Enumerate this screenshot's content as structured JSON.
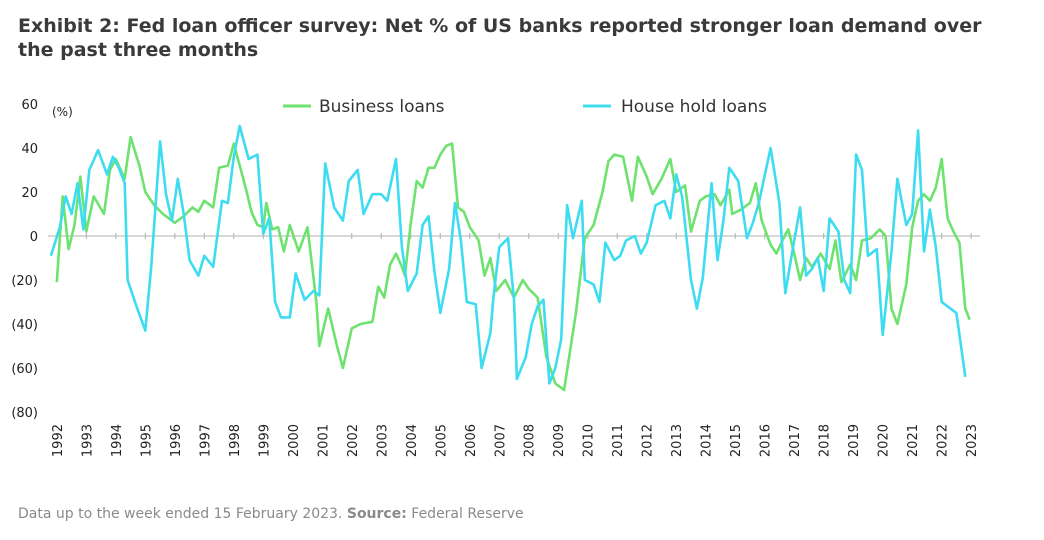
{
  "title": "Exhibit 2: Fed loan officer survey: Net % of US banks reported stronger loan demand over the past three months",
  "footer": {
    "text": "Data up to the week ended 15 February 2023. ",
    "source_label": "Source:",
    "source": " Federal Reserve"
  },
  "chart_data": {
    "type": "line",
    "unit_label": "(%)",
    "xlim": [
      1991.7,
      2023.3
    ],
    "ylim": [
      -80,
      60
    ],
    "y_ticks": [
      60,
      40,
      20,
      0,
      -20,
      -40,
      -60,
      -80
    ],
    "y_tick_labels": [
      "60",
      "40",
      "20",
      "0",
      "(20)",
      "(40)",
      "(60)",
      "(80)"
    ],
    "x_ticks": [
      "1992",
      "1993",
      "1994",
      "1995",
      "1996",
      "1997",
      "1998",
      "1999",
      "2000",
      "2001",
      "2002",
      "2003",
      "2004",
      "2005",
      "2006",
      "2007",
      "2008",
      "2009",
      "2010",
      "2011",
      "2012",
      "2013",
      "2014",
      "2015",
      "2016",
      "2017",
      "2018",
      "2019",
      "2020",
      "2021",
      "2022",
      "2023"
    ],
    "legend_placement": "top-center",
    "series": [
      {
        "name": "Business loans",
        "color": "#6ee26e",
        "points": [
          [
            1992.0,
            -21
          ],
          [
            1992.2,
            18
          ],
          [
            1992.4,
            -6
          ],
          [
            1992.6,
            5
          ],
          [
            1992.8,
            27
          ],
          [
            1993.0,
            2
          ],
          [
            1993.25,
            18
          ],
          [
            1993.6,
            10
          ],
          [
            1993.8,
            30
          ],
          [
            1994.0,
            35
          ],
          [
            1994.3,
            26
          ],
          [
            1994.5,
            45
          ],
          [
            1994.8,
            32
          ],
          [
            1995.0,
            20
          ],
          [
            1995.3,
            14
          ],
          [
            1995.6,
            10
          ],
          [
            1996.0,
            6
          ],
          [
            1996.3,
            9
          ],
          [
            1996.6,
            13
          ],
          [
            1996.8,
            11
          ],
          [
            1997.0,
            16
          ],
          [
            1997.3,
            13
          ],
          [
            1997.5,
            31
          ],
          [
            1997.8,
            32
          ],
          [
            1998.0,
            42
          ],
          [
            1998.2,
            32
          ],
          [
            1998.4,
            22
          ],
          [
            1998.6,
            11
          ],
          [
            1998.8,
            5
          ],
          [
            1999.0,
            4
          ],
          [
            1999.1,
            15
          ],
          [
            1999.3,
            3
          ],
          [
            1999.5,
            4
          ],
          [
            1999.7,
            -7
          ],
          [
            1999.9,
            5
          ],
          [
            2000.2,
            -7
          ],
          [
            2000.5,
            4
          ],
          [
            2000.8,
            -30
          ],
          [
            2000.9,
            -50
          ],
          [
            2001.2,
            -33
          ],
          [
            2001.5,
            -50
          ],
          [
            2001.7,
            -60
          ],
          [
            2002.0,
            -42
          ],
          [
            2002.3,
            -40
          ],
          [
            2002.7,
            -39
          ],
          [
            2002.9,
            -23
          ],
          [
            2003.1,
            -28
          ],
          [
            2003.3,
            -13
          ],
          [
            2003.5,
            -8
          ],
          [
            2003.7,
            -14
          ],
          [
            2003.8,
            -18
          ],
          [
            2004.0,
            6
          ],
          [
            2004.2,
            25
          ],
          [
            2004.4,
            22
          ],
          [
            2004.6,
            31
          ],
          [
            2004.8,
            31
          ],
          [
            2005.0,
            37
          ],
          [
            2005.2,
            41
          ],
          [
            2005.4,
            42
          ],
          [
            2005.6,
            13
          ],
          [
            2005.8,
            11
          ],
          [
            2006.0,
            4
          ],
          [
            2006.3,
            -2
          ],
          [
            2006.5,
            -18
          ],
          [
            2006.7,
            -10
          ],
          [
            2006.9,
            -25
          ],
          [
            2007.2,
            -20
          ],
          [
            2007.5,
            -28
          ],
          [
            2007.8,
            -20
          ],
          [
            2008.0,
            -24
          ],
          [
            2008.3,
            -28
          ],
          [
            2008.6,
            -55
          ],
          [
            2008.9,
            -67
          ],
          [
            2009.2,
            -70
          ],
          [
            2009.6,
            -35
          ],
          [
            2009.9,
            -1
          ],
          [
            2010.2,
            5
          ],
          [
            2010.5,
            20
          ],
          [
            2010.7,
            34
          ],
          [
            2010.9,
            37
          ],
          [
            2011.2,
            36
          ],
          [
            2011.5,
            16
          ],
          [
            2011.7,
            36
          ],
          [
            2012.0,
            27
          ],
          [
            2012.2,
            19
          ],
          [
            2012.5,
            26
          ],
          [
            2012.8,
            35
          ],
          [
            2013.0,
            20
          ],
          [
            2013.3,
            23
          ],
          [
            2013.5,
            2
          ],
          [
            2013.8,
            16
          ],
          [
            2014.0,
            18
          ],
          [
            2014.3,
            19
          ],
          [
            2014.5,
            14
          ],
          [
            2014.8,
            21
          ],
          [
            2014.9,
            10
          ],
          [
            2015.2,
            12
          ],
          [
            2015.5,
            15
          ],
          [
            2015.7,
            24
          ],
          [
            2015.9,
            7
          ],
          [
            2016.2,
            -4
          ],
          [
            2016.4,
            -8
          ],
          [
            2016.6,
            -2
          ],
          [
            2016.8,
            3
          ],
          [
            2017.0,
            -8
          ],
          [
            2017.2,
            -20
          ],
          [
            2017.4,
            -10
          ],
          [
            2017.6,
            -14
          ],
          [
            2017.9,
            -8
          ],
          [
            2018.2,
            -15
          ],
          [
            2018.4,
            -2
          ],
          [
            2018.6,
            -21
          ],
          [
            2018.9,
            -13
          ],
          [
            2019.1,
            -20
          ],
          [
            2019.3,
            -2
          ],
          [
            2019.6,
            -1
          ],
          [
            2019.9,
            3
          ],
          [
            2020.1,
            0
          ],
          [
            2020.3,
            -33
          ],
          [
            2020.5,
            -40
          ],
          [
            2020.8,
            -22
          ],
          [
            2021.0,
            4
          ],
          [
            2021.2,
            16
          ],
          [
            2021.4,
            19
          ],
          [
            2021.6,
            16
          ],
          [
            2021.8,
            22
          ],
          [
            2022.0,
            35
          ],
          [
            2022.2,
            8
          ],
          [
            2022.4,
            2
          ],
          [
            2022.6,
            -3
          ],
          [
            2022.8,
            -33
          ],
          [
            2022.95,
            -38
          ]
        ]
      },
      {
        "name": "House hold loans",
        "color": "#3ddcf0",
        "points": [
          [
            1991.8,
            -9
          ],
          [
            1992.1,
            4
          ],
          [
            1992.3,
            18
          ],
          [
            1992.5,
            10
          ],
          [
            1992.7,
            24
          ],
          [
            1992.9,
            3
          ],
          [
            1993.1,
            30
          ],
          [
            1993.4,
            39
          ],
          [
            1993.7,
            28
          ],
          [
            1993.9,
            36
          ],
          [
            1994.1,
            31
          ],
          [
            1994.3,
            24
          ],
          [
            1994.4,
            -20
          ],
          [
            1994.7,
            -32
          ],
          [
            1995.0,
            -43
          ],
          [
            1995.2,
            -14
          ],
          [
            1995.3,
            5
          ],
          [
            1995.5,
            43
          ],
          [
            1995.7,
            19
          ],
          [
            1995.9,
            7
          ],
          [
            1996.1,
            26
          ],
          [
            1996.3,
            10
          ],
          [
            1996.5,
            -11
          ],
          [
            1996.8,
            -18
          ],
          [
            1997.0,
            -9
          ],
          [
            1997.3,
            -14
          ],
          [
            1997.6,
            16
          ],
          [
            1997.8,
            15
          ],
          [
            1998.0,
            36
          ],
          [
            1998.2,
            50
          ],
          [
            1998.5,
            35
          ],
          [
            1998.8,
            37
          ],
          [
            1999.0,
            1
          ],
          [
            1999.2,
            8
          ],
          [
            1999.4,
            -30
          ],
          [
            1999.6,
            -37
          ],
          [
            1999.9,
            -37
          ],
          [
            2000.1,
            -17
          ],
          [
            2000.4,
            -29
          ],
          [
            2000.7,
            -25
          ],
          [
            2000.9,
            -27
          ],
          [
            2001.1,
            33
          ],
          [
            2001.4,
            13
          ],
          [
            2001.7,
            7
          ],
          [
            2001.9,
            25
          ],
          [
            2002.2,
            30
          ],
          [
            2002.4,
            10
          ],
          [
            2002.7,
            19
          ],
          [
            2003.0,
            19
          ],
          [
            2003.2,
            16
          ],
          [
            2003.5,
            35
          ],
          [
            2003.7,
            -5
          ],
          [
            2003.9,
            -25
          ],
          [
            2004.2,
            -17
          ],
          [
            2004.4,
            5
          ],
          [
            2004.6,
            9
          ],
          [
            2004.8,
            -16
          ],
          [
            2005.0,
            -35
          ],
          [
            2005.3,
            -15
          ],
          [
            2005.5,
            15
          ],
          [
            2005.7,
            -2
          ],
          [
            2005.9,
            -30
          ],
          [
            2006.2,
            -31
          ],
          [
            2006.4,
            -60
          ],
          [
            2006.7,
            -44
          ],
          [
            2006.8,
            -28
          ],
          [
            2007.0,
            -5
          ],
          [
            2007.3,
            -1
          ],
          [
            2007.5,
            -29
          ],
          [
            2007.6,
            -65
          ],
          [
            2007.9,
            -55
          ],
          [
            2008.1,
            -40
          ],
          [
            2008.3,
            -32
          ],
          [
            2008.5,
            -29
          ],
          [
            2008.7,
            -67
          ],
          [
            2008.9,
            -60
          ],
          [
            2009.1,
            -47
          ],
          [
            2009.3,
            14
          ],
          [
            2009.5,
            -1
          ],
          [
            2009.8,
            16
          ],
          [
            2009.9,
            -20
          ],
          [
            2010.2,
            -22
          ],
          [
            2010.4,
            -30
          ],
          [
            2010.6,
            -3
          ],
          [
            2010.9,
            -11
          ],
          [
            2011.1,
            -9
          ],
          [
            2011.3,
            -2
          ],
          [
            2011.6,
            0
          ],
          [
            2011.8,
            -8
          ],
          [
            2012.0,
            -3
          ],
          [
            2012.3,
            14
          ],
          [
            2012.6,
            16
          ],
          [
            2012.8,
            8
          ],
          [
            2013.0,
            28
          ],
          [
            2013.2,
            18
          ],
          [
            2013.5,
            -20
          ],
          [
            2013.7,
            -33
          ],
          [
            2013.9,
            -19
          ],
          [
            2014.2,
            24
          ],
          [
            2014.4,
            -11
          ],
          [
            2014.6,
            7
          ],
          [
            2014.8,
            31
          ],
          [
            2015.1,
            25
          ],
          [
            2015.4,
            -1
          ],
          [
            2015.6,
            6
          ],
          [
            2015.8,
            15
          ],
          [
            2016.2,
            40
          ],
          [
            2016.5,
            15
          ],
          [
            2016.7,
            -26
          ],
          [
            2016.9,
            -10
          ],
          [
            2017.2,
            13
          ],
          [
            2017.4,
            -18
          ],
          [
            2017.6,
            -15
          ],
          [
            2017.8,
            -10
          ],
          [
            2018.0,
            -25
          ],
          [
            2018.2,
            8
          ],
          [
            2018.5,
            2
          ],
          [
            2018.7,
            -20
          ],
          [
            2018.9,
            -26
          ],
          [
            2019.1,
            37
          ],
          [
            2019.3,
            30
          ],
          [
            2019.5,
            -9
          ],
          [
            2019.8,
            -6
          ],
          [
            2020.0,
            -45
          ],
          [
            2020.3,
            -7
          ],
          [
            2020.5,
            26
          ],
          [
            2020.8,
            5
          ],
          [
            2021.0,
            10
          ],
          [
            2021.2,
            48
          ],
          [
            2021.4,
            -7
          ],
          [
            2021.6,
            12
          ],
          [
            2021.8,
            -5
          ],
          [
            2022.0,
            -30
          ],
          [
            2022.3,
            -33
          ],
          [
            2022.5,
            -35
          ],
          [
            2022.8,
            -64
          ]
        ]
      }
    ]
  }
}
